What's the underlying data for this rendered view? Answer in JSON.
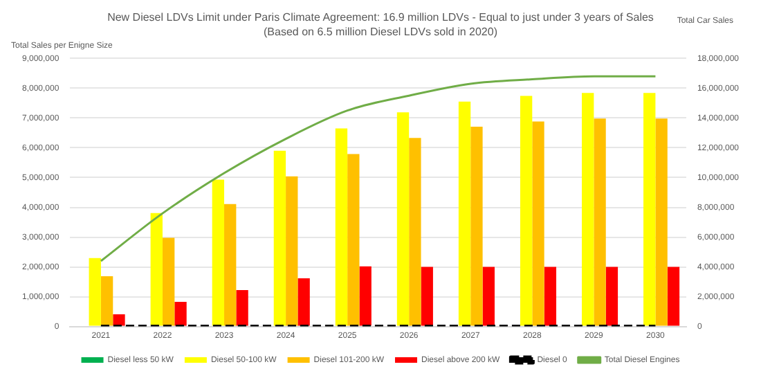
{
  "chart_data": {
    "type": "bar",
    "title": "New Diesel LDVs Limit under Paris Climate Agreement: 16.9 million LDVs - Equal to just under 3 years of Sales",
    "subtitle": "(Based on 6.5 million Diesel LDVs sold in 2020)",
    "ylabel": "Total Sales per Enigne Size",
    "y2label": "Total Car Sales",
    "categories": [
      "2021",
      "2022",
      "2023",
      "2024",
      "2025",
      "2026",
      "2027",
      "2028",
      "2029",
      "2030"
    ],
    "series": [
      {
        "name": "Diesel less 50 kW",
        "color": "#00b050",
        "values": [
          0,
          0,
          0,
          0,
          0,
          0,
          0,
          0,
          0,
          0
        ]
      },
      {
        "name": "Diesel 50-100 kW",
        "color": "#ffff00",
        "values": [
          2300000,
          3810000,
          4930000,
          5900000,
          6650000,
          7190000,
          7550000,
          7740000,
          7840000,
          7840000
        ]
      },
      {
        "name": "Diesel 101-200 kW",
        "color": "#ffc000",
        "values": [
          1690000,
          2980000,
          4110000,
          5040000,
          5790000,
          6330000,
          6710000,
          6880000,
          6980000,
          6980000
        ]
      },
      {
        "name": "Diesel above 200 kW",
        "color": "#ff0000",
        "values": [
          410000,
          830000,
          1220000,
          1620000,
          2020000,
          2000000,
          2000000,
          2000000,
          2000000,
          2000000
        ]
      },
      {
        "name": "Diesel 0",
        "type": "line",
        "color": "#000000",
        "line_style": "dashed",
        "values": [
          0,
          0,
          0,
          0,
          0,
          0,
          0,
          0,
          0,
          0
        ]
      },
      {
        "name": "Total Diesel Engines",
        "type": "line",
        "axis": "y2",
        "color": "#70ad47",
        "values": [
          4400000,
          7600000,
          10300000,
          12600000,
          14500000,
          15500000,
          16300000,
          16600000,
          16800000,
          16800000
        ]
      }
    ],
    "ylim": [
      0,
      9000000
    ],
    "yticks": [
      0,
      {
        "value": 1000000,
        "label": "1,000,000"
      },
      {
        "value": 2000000,
        "label": "2,000,000"
      },
      {
        "value": 3000000,
        "label": "3,000,000"
      },
      {
        "value": 4000000,
        "label": "4,000,000"
      },
      {
        "value": 5000000,
        "label": "5,000,000"
      },
      {
        "value": 6000000,
        "label": "6,000,000"
      },
      {
        "value": 7000000,
        "label": "7,000,000"
      },
      {
        "value": 8000000,
        "label": "8,000,000"
      },
      {
        "value": 9000000,
        "label": "9,000,000"
      }
    ],
    "y2lim": [
      0,
      18000000
    ],
    "y2ticks": [
      0,
      {
        "value": 2000000,
        "label": "2,000,000"
      },
      {
        "value": 4000000,
        "label": "4,000,000"
      },
      {
        "value": 6000000,
        "label": "6,000,000"
      },
      {
        "value": 8000000,
        "label": "8,000,000"
      },
      {
        "value": 10000000,
        "label": "10,000,000"
      },
      {
        "value": 12000000,
        "label": "12,000,000"
      },
      {
        "value": 14000000,
        "label": "14,000,000"
      },
      {
        "value": 16000000,
        "label": "16,000,000"
      },
      {
        "value": 18000000,
        "label": "18,000,000"
      }
    ],
    "grid": "y",
    "legend": "bottom",
    "marker": "none"
  }
}
